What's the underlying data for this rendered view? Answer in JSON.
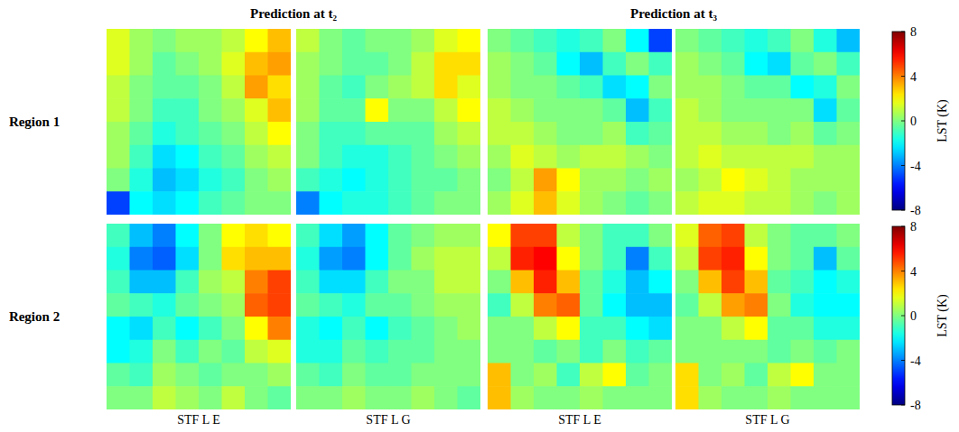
{
  "chart_data": {
    "type": "heatmap",
    "column_titles": [
      "Prediction at t₂",
      "Prediction at t₃"
    ],
    "panel_labels": [
      "STF L E",
      "STF L G",
      "STF L E",
      "STF L G"
    ],
    "colorbar": {
      "label": "LST (K)",
      "range": [
        -8,
        8
      ],
      "ticks": [
        8,
        4,
        0,
        -4,
        -8
      ]
    },
    "regions": [
      {
        "label": "Region 1",
        "panels": [
          {
            "cells": [
              [
                1.5,
                0.5,
                0,
                0.5,
                0.5,
                1,
                2,
                3
              ],
              [
                1.5,
                0.5,
                -0.5,
                0,
                0.5,
                1.5,
                3,
                3.5
              ],
              [
                1,
                0,
                -0.5,
                -0.5,
                0,
                1,
                3.5,
                2.5
              ],
              [
                1,
                0,
                -1,
                -1,
                0,
                0.5,
                1.5,
                3
              ],
              [
                0.5,
                -0.5,
                -1.5,
                -1,
                -0.5,
                0,
                1,
                2
              ],
              [
                0.5,
                -1,
                -2.5,
                -2,
                -1,
                -0.5,
                0.5,
                1
              ],
              [
                0,
                -1.5,
                -3,
                -2.5,
                -1.5,
                -1,
                0,
                0.5
              ],
              [
                -5,
                -2,
                -2.5,
                -2,
                -1,
                -0.5,
                0,
                0
              ]
            ]
          },
          {
            "cells": [
              [
                1,
                0,
                -0.5,
                0,
                0,
                0.5,
                1.5,
                2
              ],
              [
                0.5,
                0,
                -0.5,
                -0.5,
                0,
                1,
                2.5,
                2.5
              ],
              [
                0.5,
                -0.5,
                -1,
                0,
                0.5,
                1,
                2.5,
                1.5
              ],
              [
                0.5,
                -0.5,
                -0.5,
                2,
                0,
                0,
                1,
                2
              ],
              [
                0,
                -1,
                -1,
                -0.5,
                -0.5,
                -0.5,
                0.5,
                1
              ],
              [
                0,
                -1,
                -1.5,
                -1.5,
                -1,
                -0.5,
                0,
                0.5
              ],
              [
                -1,
                -1.5,
                -2,
                -1.5,
                -1,
                -0.5,
                -0.5,
                0
              ],
              [
                -4,
                -2,
                -1.5,
                -1.5,
                -1,
                -0.5,
                0,
                0
              ]
            ]
          },
          {
            "cells": [
              [
                0,
                -0.5,
                -1,
                -1.5,
                -1,
                0,
                -2,
                -5
              ],
              [
                0.5,
                0,
                -0.5,
                -2,
                -3,
                -1,
                0,
                -1
              ],
              [
                0.5,
                0,
                0,
                -0.5,
                -1,
                -2.5,
                -2,
                0
              ],
              [
                1,
                0.5,
                0,
                0,
                0,
                -0.5,
                -3,
                -1
              ],
              [
                1,
                1,
                0.5,
                0,
                0,
                0.5,
                -1,
                -0.5
              ],
              [
                0.5,
                1.5,
                1,
                0.5,
                1,
                1,
                0.5,
                0
              ],
              [
                0,
                1,
                3.5,
                2,
                0.5,
                0.5,
                0,
                0.5
              ],
              [
                0.5,
                1.5,
                3,
                1.5,
                0.5,
                0,
                -0.5,
                0
              ]
            ]
          },
          {
            "cells": [
              [
                0,
                -0.5,
                -1,
                -1.5,
                -1,
                0,
                -1.5,
                -3
              ],
              [
                0.5,
                0,
                -0.5,
                -2,
                -2.5,
                -0.5,
                0,
                -1
              ],
              [
                0.5,
                0.5,
                0,
                -0.5,
                -0.5,
                -2,
                -1.5,
                0
              ],
              [
                1,
                0.5,
                0,
                0,
                0,
                0,
                -2.5,
                -0.5
              ],
              [
                1,
                1,
                0.5,
                0.5,
                0,
                0.5,
                -0.5,
                0
              ],
              [
                1,
                1.5,
                1,
                1,
                1,
                1,
                0.5,
                0.5
              ],
              [
                0.5,
                1,
                2,
                1.5,
                1,
                0.5,
                0.5,
                0.5
              ],
              [
                1,
                1.5,
                1.5,
                1,
                1,
                0.5,
                0,
                0.5
              ]
            ]
          }
        ]
      },
      {
        "label": "Region 2",
        "panels": [
          {
            "cells": [
              [
                -1,
                -3,
                -4,
                -2,
                0,
                2,
                2.5,
                2
              ],
              [
                -1.5,
                -4,
                -4.5,
                -2.5,
                0,
                2.5,
                3,
                3
              ],
              [
                -1,
                -3,
                -3,
                -1,
                0.5,
                1,
                4,
                5
              ],
              [
                -0.5,
                -1,
                -1.5,
                -0.5,
                0,
                0.5,
                4.5,
                5
              ],
              [
                -2,
                -2.5,
                -1,
                -2,
                -1,
                0,
                2,
                4
              ],
              [
                -2,
                -1.5,
                0,
                -1,
                0,
                -0.5,
                1,
                1.5
              ],
              [
                -0.5,
                -1,
                0.5,
                0,
                -0.5,
                0,
                0,
                0.5
              ],
              [
                0,
                0,
                1,
                0.5,
                0,
                1,
                0,
                -0.5
              ]
            ]
          },
          {
            "cells": [
              [
                -1,
                -2.5,
                -3.5,
                -2,
                -0.5,
                0,
                0.5,
                0.5
              ],
              [
                -1.5,
                -3.5,
                -4,
                -2,
                -0.5,
                0.5,
                1,
                1
              ],
              [
                -1,
                -2.5,
                -2.5,
                -1,
                0,
                0,
                1,
                1
              ],
              [
                -0.5,
                -1,
                -1.5,
                -0.5,
                -0.5,
                0,
                0.5,
                0.5
              ],
              [
                -1.5,
                -2,
                -1,
                -2,
                -1,
                -0.5,
                0,
                0.5
              ],
              [
                -1.5,
                -1.5,
                -0.5,
                -1,
                -0.5,
                -0.5,
                0,
                0
              ],
              [
                -0.5,
                -1,
                0,
                -0.5,
                -0.5,
                0,
                0,
                0
              ],
              [
                0,
                0,
                0.5,
                0,
                0,
                0.5,
                0,
                -0.5
              ]
            ]
          },
          {
            "cells": [
              [
                2,
                5,
                5,
                1,
                0,
                -1,
                -1,
                0
              ],
              [
                1,
                5.5,
                6,
                2,
                0,
                -1,
                -4,
                -1
              ],
              [
                0,
                3,
                5.5,
                3,
                -0.5,
                -1.5,
                -3,
                -2
              ],
              [
                -1,
                1,
                4,
                4.5,
                -0.5,
                -2,
                -3,
                -3
              ],
              [
                0,
                0,
                1,
                2,
                -1,
                -1,
                -2,
                -2.5
              ],
              [
                0,
                0,
                -0.5,
                0,
                -1,
                0,
                -1,
                -0.5
              ],
              [
                3,
                0,
                0.5,
                -1,
                1,
                2,
                -0.5,
                0
              ],
              [
                3,
                0.5,
                0,
                0,
                0.5,
                0,
                0,
                0
              ]
            ]
          },
          {
            "cells": [
              [
                1.5,
                4.5,
                5,
                1,
                0,
                -0.5,
                -0.5,
                0
              ],
              [
                1,
                5,
                5.5,
                2,
                0,
                -0.5,
                -3,
                -0.5
              ],
              [
                0,
                3,
                5,
                3,
                -0.5,
                -1,
                -2,
                -1.5
              ],
              [
                -0.5,
                1,
                3.5,
                4,
                0,
                -1.5,
                -2,
                -2
              ],
              [
                0,
                0,
                1,
                2,
                -0.5,
                -0.5,
                -1.5,
                -1.5
              ],
              [
                0,
                0,
                0,
                0,
                -0.5,
                0,
                -0.5,
                0
              ],
              [
                2.5,
                0,
                0.5,
                -0.5,
                1,
                2,
                0,
                0
              ],
              [
                2.5,
                0.5,
                0,
                0,
                0.5,
                0,
                0,
                0
              ]
            ]
          }
        ]
      }
    ]
  }
}
